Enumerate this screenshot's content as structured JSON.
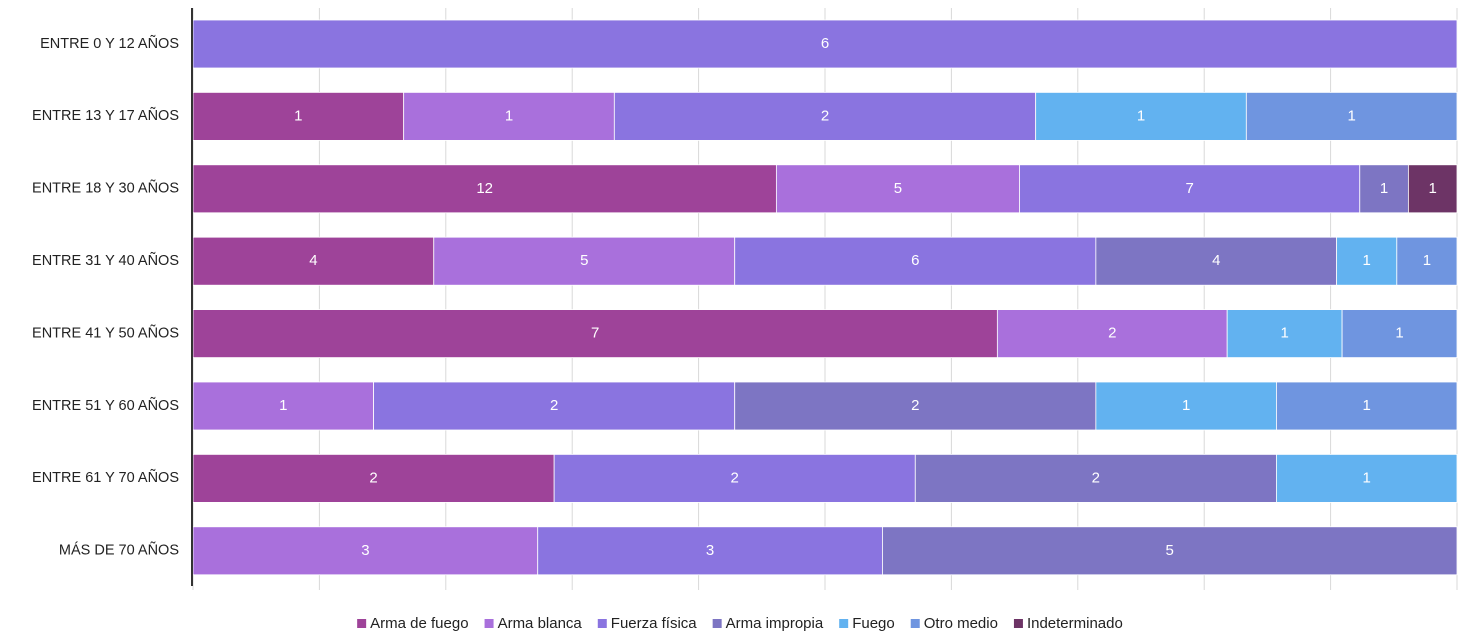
{
  "chart_data": {
    "type": "stacked_bar_100",
    "categories": [
      "ENTRE 0 Y 12 AÑOS",
      "ENTRE 13 Y 17 AÑOS",
      "ENTRE 18 Y 30 AÑOS",
      "ENTRE 31 Y 40 AÑOS",
      "ENTRE 41 Y 50 AÑOS",
      "ENTRE 51 Y 60 AÑOS",
      "ENTRE 61 Y 70 AÑOS",
      "MÁS DE 70 AÑOS"
    ],
    "series": [
      {
        "name": "Arma de fuego",
        "color": "#9e4399",
        "values": [
          null,
          1,
          12,
          4,
          7,
          null,
          2,
          null
        ]
      },
      {
        "name": "Arma blanca",
        "color": "#a970dc",
        "values": [
          null,
          1,
          5,
          5,
          2,
          1,
          null,
          3
        ]
      },
      {
        "name": "Fuerza física",
        "color": "#8a74e0",
        "values": [
          6,
          2,
          7,
          6,
          null,
          2,
          2,
          3
        ]
      },
      {
        "name": "Arma impropia",
        "color": "#7d75c3",
        "values": [
          null,
          null,
          1,
          4,
          null,
          2,
          2,
          5
        ]
      },
      {
        "name": "Fuego",
        "color": "#62b2f0",
        "values": [
          null,
          1,
          null,
          1,
          1,
          1,
          1,
          null
        ]
      },
      {
        "name": "Otro medio",
        "color": "#6f95e0",
        "values": [
          null,
          1,
          null,
          1,
          1,
          1,
          null,
          null
        ]
      },
      {
        "name": "Indeterminado",
        "color": "#6d3466",
        "values": [
          null,
          null,
          1,
          null,
          null,
          null,
          null,
          null
        ]
      }
    ],
    "xlim": [
      0,
      100
    ],
    "xticks": [
      0,
      10,
      20,
      30,
      40,
      50,
      60,
      70,
      80,
      90,
      100
    ],
    "grid": true,
    "legend": "bottom"
  }
}
